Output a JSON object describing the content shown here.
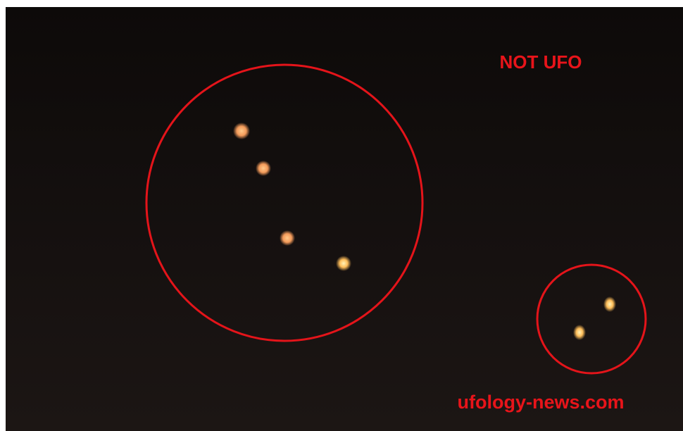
{
  "labels": {
    "caption": "NOT UFO",
    "watermark": "ufology-news.com"
  }
}
